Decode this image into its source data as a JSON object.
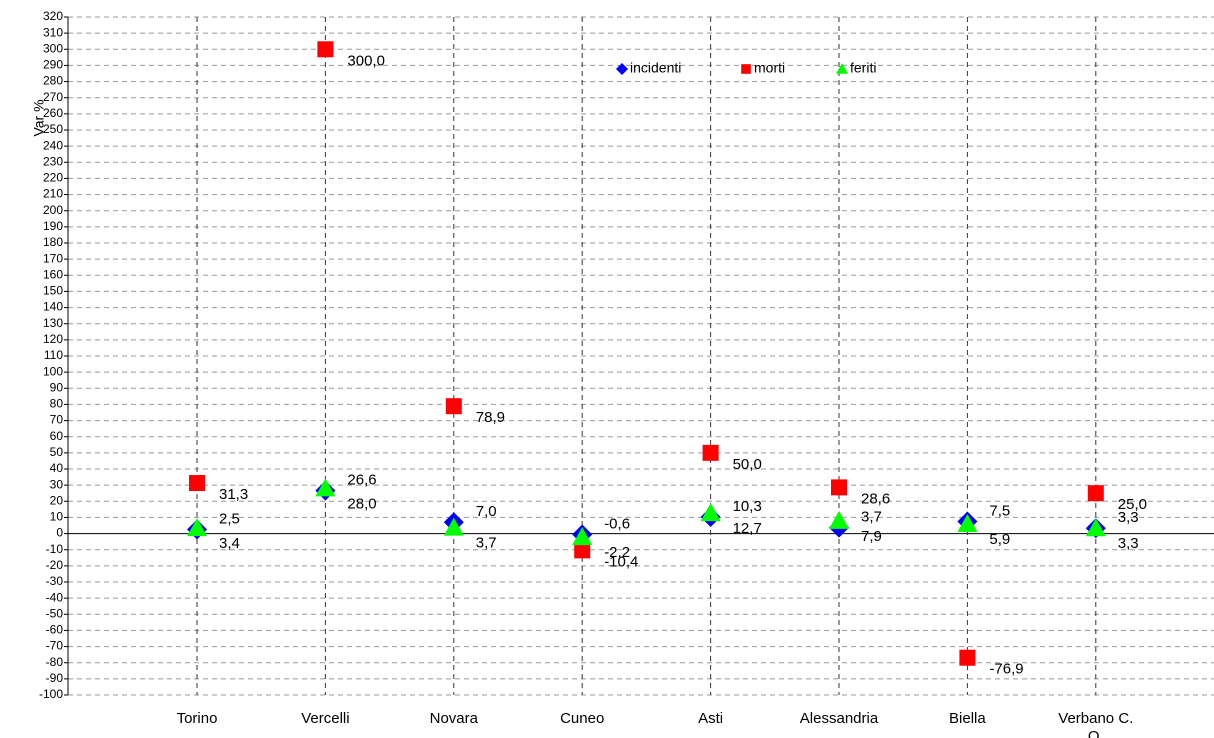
{
  "chart_data": {
    "type": "scatter",
    "y_label": "Var %",
    "categories": [
      "Torino",
      "Vercelli",
      "Novara",
      "Cuneo",
      "Asti",
      "Alessandria",
      "Biella",
      "Verbano C. O."
    ],
    "series": [
      {
        "name": "incidenti",
        "color": "#0000ff",
        "label_color": "#1f3a68",
        "marker": "diamond",
        "values": [
          2.5,
          26.6,
          7.0,
          -0.6,
          10.3,
          3.7,
          7.5,
          3.3
        ],
        "value_labels": [
          "2,5",
          "26,6",
          "7,0",
          "-0,6",
          "10,3",
          "3,7",
          "7,5",
          "3,3"
        ]
      },
      {
        "name": "morti",
        "color": "#ff0000",
        "label_color": "#ff0000",
        "marker": "square",
        "values": [
          31.3,
          300.0,
          78.9,
          -10.4,
          50.0,
          28.6,
          -76.9,
          25.0
        ],
        "value_labels": [
          "31,3",
          "300,0",
          "78,9",
          "-10,4",
          "50,0",
          "28,6",
          "-76,9",
          "25,0"
        ]
      },
      {
        "name": "feriti",
        "color": "#00ff00",
        "label_color": "#3f9a63",
        "marker": "triangle",
        "values": [
          3.4,
          28.0,
          3.7,
          -2.2,
          12.7,
          7.9,
          5.9,
          3.3
        ],
        "value_labels": [
          "3,4",
          "28,0",
          "3,7",
          "-2,2",
          "12,7",
          "7,9",
          "5,9",
          "3,3"
        ]
      }
    ],
    "ylim": [
      -100,
      320
    ],
    "yticks": [
      -100,
      -90,
      -80,
      -70,
      -60,
      -50,
      -40,
      -30,
      -20,
      -10,
      0,
      10,
      20,
      30,
      40,
      50,
      60,
      70,
      80,
      90,
      100,
      110,
      120,
      130,
      140,
      150,
      160,
      170,
      180,
      190,
      200,
      210,
      220,
      230,
      240,
      250,
      260,
      270,
      280,
      290,
      300,
      310,
      320
    ],
    "grid": true
  }
}
